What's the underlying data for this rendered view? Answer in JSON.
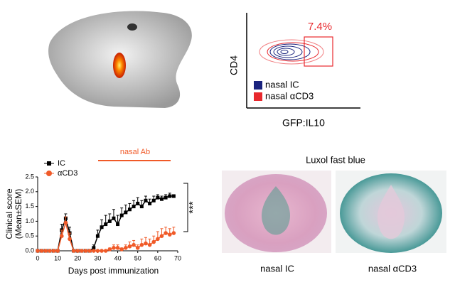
{
  "chart_data": [
    {
      "type": "line",
      "y_label": [
        "Clinical score",
        "(Mean±SEM)"
      ],
      "x_label": "Days post immunization",
      "annotations": [
        "nasal Ab",
        "***"
      ],
      "x": [
        0,
        2,
        4,
        6,
        8,
        10,
        12,
        14,
        16,
        18,
        20,
        22,
        24,
        26,
        28,
        30,
        32,
        34,
        36,
        38,
        40,
        42,
        44,
        46,
        48,
        50,
        52,
        54,
        56,
        58,
        60,
        62,
        64,
        66,
        68
      ],
      "series": [
        {
          "name": "IC",
          "color": "#000000",
          "marker": "square",
          "values": [
            0,
            0,
            0,
            0,
            0,
            0,
            0.7,
            1.1,
            0.6,
            0,
            0,
            0,
            0,
            0,
            0.1,
            0.5,
            0.8,
            0.9,
            1.0,
            1.1,
            0.9,
            1.2,
            1.3,
            1.4,
            1.5,
            1.6,
            1.5,
            1.7,
            1.6,
            1.7,
            1.8,
            1.75,
            1.8,
            1.85,
            1.85
          ],
          "errors": [
            0,
            0,
            0,
            0,
            0,
            0,
            0.2,
            0.15,
            0.2,
            0,
            0,
            0,
            0,
            0,
            0.1,
            0.2,
            0.25,
            0.3,
            0.25,
            0.3,
            0.3,
            0.25,
            0.25,
            0.2,
            0.2,
            0.2,
            0.2,
            0.15,
            0.15,
            0.15,
            0.1,
            0.1,
            0.1,
            0.1,
            0.05
          ]
        },
        {
          "name": "αCD3",
          "color": "#f05a28",
          "marker": "circle",
          "values": [
            0,
            0,
            0,
            0,
            0,
            0,
            0.5,
            0.95,
            0.4,
            0,
            0,
            0,
            0,
            0,
            0,
            0,
            0,
            0,
            0.05,
            0.1,
            0.1,
            0.05,
            0.1,
            0.15,
            0.2,
            0.1,
            0.2,
            0.25,
            0.2,
            0.3,
            0.4,
            0.5,
            0.6,
            0.55,
            0.6
          ],
          "errors": [
            0,
            0,
            0,
            0,
            0,
            0,
            0.2,
            0.2,
            0.2,
            0,
            0,
            0,
            0,
            0,
            0,
            0,
            0,
            0,
            0.05,
            0.1,
            0.1,
            0.05,
            0.1,
            0.15,
            0.15,
            0.1,
            0.2,
            0.2,
            0.2,
            0.2,
            0.25,
            0.25,
            0.2,
            0.2,
            0.2
          ]
        }
      ],
      "xlim": [
        0,
        70
      ],
      "xticks": [
        0,
        10,
        20,
        30,
        40,
        50,
        60,
        70
      ],
      "ylim": [
        0,
        2.5
      ],
      "yticks": [
        {
          "value": 0,
          "label": "0.0"
        },
        0.5,
        {
          "value": 1,
          "label": "1.0"
        },
        1.5,
        {
          "value": 2,
          "label": "2.0"
        },
        2.5
      ]
    },
    {
      "type": "contour",
      "x_label": "GFP:IL10",
      "y_label": "CD4",
      "annotation": "7.4%",
      "series": [
        {
          "name": "nasal IC",
          "color": "#1a237e"
        },
        {
          "name": "nasal αCD3",
          "color": "#e8282d"
        }
      ]
    }
  ],
  "histology": {
    "title": "Luxol fast blue",
    "captions": [
      "nasal IC",
      "nasal αCD3"
    ]
  }
}
